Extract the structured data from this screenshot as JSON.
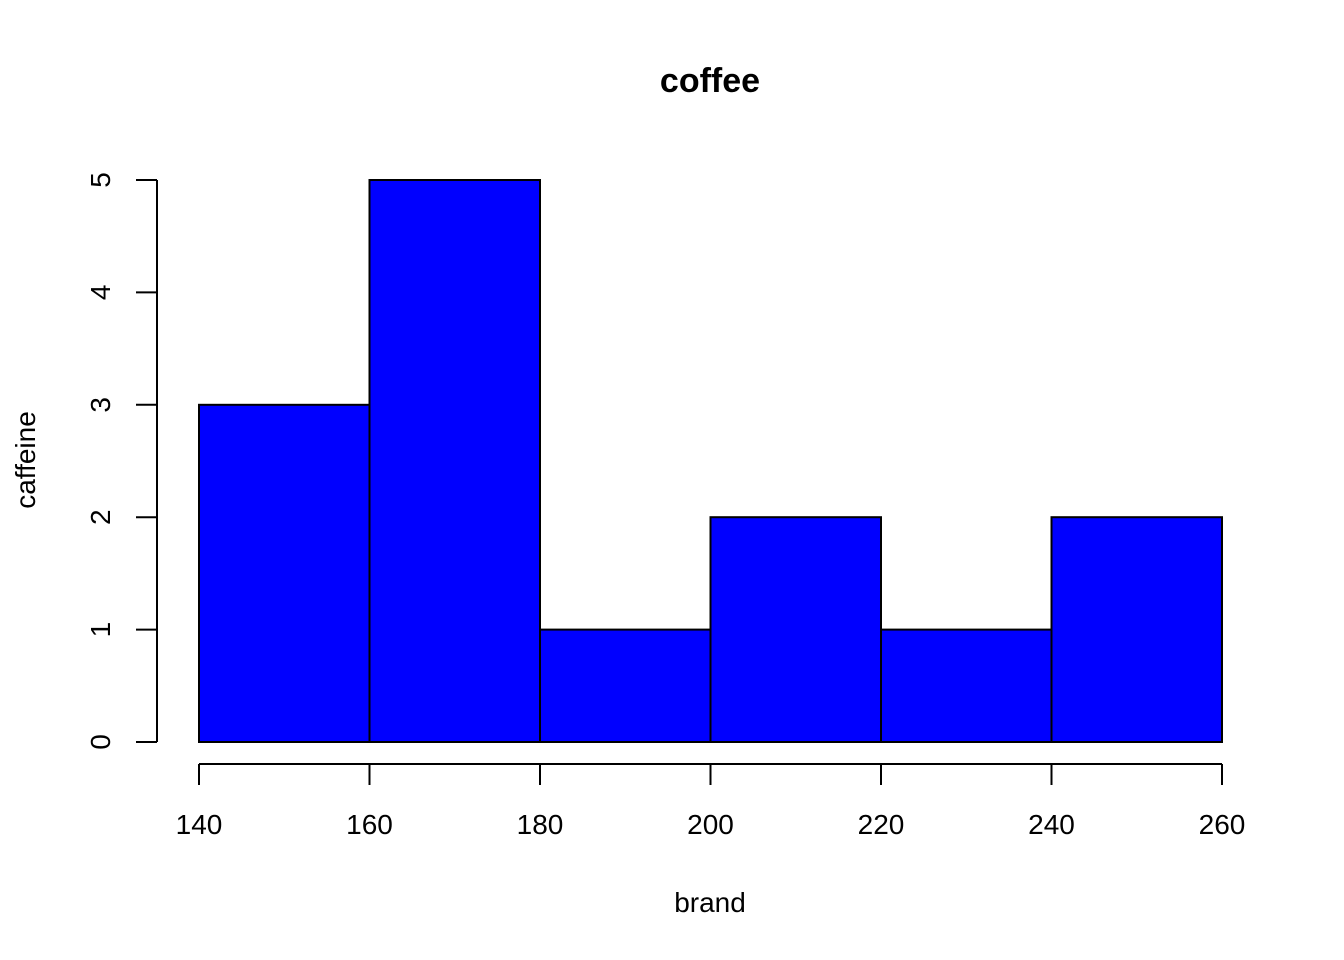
{
  "chart_data": {
    "type": "bar",
    "title": "coffee",
    "xlabel": "brand",
    "ylabel": "caffeine",
    "bins": [
      {
        "from": 140,
        "to": 160,
        "count": 3
      },
      {
        "from": 160,
        "to": 180,
        "count": 5
      },
      {
        "from": 180,
        "to": 200,
        "count": 1
      },
      {
        "from": 200,
        "to": 220,
        "count": 2
      },
      {
        "from": 220,
        "to": 240,
        "count": 1
      },
      {
        "from": 240,
        "to": 260,
        "count": 2
      }
    ],
    "x_ticks": [
      140,
      160,
      180,
      200,
      220,
      240,
      260
    ],
    "y_ticks": [
      0,
      1,
      2,
      3,
      4,
      5
    ],
    "xlim": [
      140,
      260
    ],
    "ylim": [
      0,
      5
    ],
    "bar_color": "#0000ff",
    "grid": false
  }
}
